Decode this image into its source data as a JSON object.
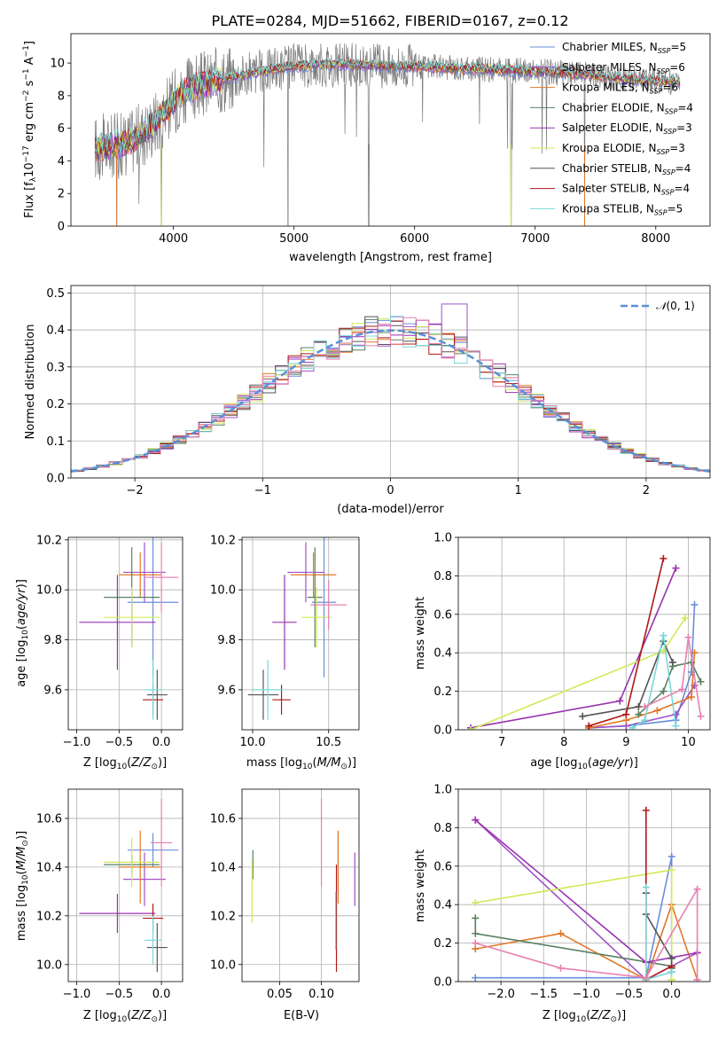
{
  "title": "PLATE=0284, MJD=51662, FIBERID=0167, z=0.12",
  "colors": {
    "Chabrier MILES": "#6a8ed8",
    "Salpeter MILES": "#a050c8",
    "Kroupa MILES": "#e07828",
    "Chabrier ELODIE": "#5a8060",
    "Salpeter ELODIE": "#9a32b0",
    "Kroupa ELODIE": "#d0ea58",
    "Chabrier STELIB": "#555555",
    "Salpeter STELIB": "#b01818",
    "Kroupa STELIB": "#78d8d8",
    "pink": "#e880b0",
    "spectrum": "#7a7a7a",
    "normal": "#5b8fd6"
  },
  "chart_data": [
    {
      "type": "line",
      "name": "spectrum",
      "xlabel": "wavelength [Angstrom, rest frame]",
      "ylabel": "Flux [f_λ10^-17 erg cm^-2 s^-1 A^-1]",
      "xlim": [
        3150,
        8450
      ],
      "ylim": [
        0,
        11.8
      ],
      "xticks": [
        4000,
        5000,
        6000,
        7000,
        8000
      ],
      "yticks": [
        0,
        2,
        4,
        6,
        8,
        10
      ],
      "grid": false,
      "legend_position": "right",
      "legend": [
        {
          "label": "Chabrier MILES, N_SSP=5",
          "main": "Chabrier MILES, N",
          "sub": "SSP",
          "tail": "=5",
          "color_key": "Chabrier MILES"
        },
        {
          "label": "Salpeter MILES, N_SSP=6",
          "main": "Salpeter MILES, N",
          "sub": "SSP",
          "tail": "=6",
          "color_key": "Salpeter MILES"
        },
        {
          "label": "Kroupa MILES, N_SSP=6",
          "main": "Kroupa MILES, N",
          "sub": "SSP",
          "tail": "=6",
          "color_key": "Kroupa MILES"
        },
        {
          "label": "Chabrier ELODIE, N_SSP=4",
          "main": "Chabrier ELODIE, N",
          "sub": "SSP",
          "tail": "=4",
          "color_key": "Chabrier ELODIE"
        },
        {
          "label": "Salpeter ELODIE, N_SSP=3",
          "main": "Salpeter ELODIE, N",
          "sub": "SSP",
          "tail": "=3",
          "color_key": "Salpeter ELODIE"
        },
        {
          "label": "Kroupa ELODIE, N_SSP=3",
          "main": "Kroupa ELODIE, N",
          "sub": "SSP",
          "tail": "=3",
          "color_key": "Kroupa ELODIE"
        },
        {
          "label": "Chabrier STELIB, N_SSP=4",
          "main": "Chabrier STELIB, N",
          "sub": "SSP",
          "tail": "=4",
          "color_key": "Chabrier STELIB"
        },
        {
          "label": "Salpeter STELIB, N_SSP=4",
          "main": "Salpeter STELIB, N",
          "sub": "SSP",
          "tail": "=4",
          "color_key": "Salpeter STELIB"
        },
        {
          "label": "Kroupa STELIB, N_SSP=5",
          "main": "Kroupa STELIB, N",
          "sub": "SSP",
          "tail": "=5",
          "color_key": "Kroupa STELIB"
        }
      ],
      "continuum": {
        "x": [
          3350,
          3500,
          3650,
          3800,
          3950,
          4050,
          4200,
          4400,
          4600,
          4800,
          5000,
          5200,
          5500,
          5800,
          6000,
          6300,
          6600,
          7000,
          7400,
          7800,
          8200
        ],
        "y": [
          4.8,
          4.9,
          5.2,
          6.0,
          7.2,
          8.0,
          8.6,
          9.0,
          9.3,
          9.6,
          9.8,
          9.9,
          9.9,
          9.8,
          9.8,
          9.7,
          9.6,
          9.5,
          9.3,
          9.0,
          8.8
        ]
      },
      "dips": [
        {
          "x": 3530,
          "y": 0.0
        },
        {
          "x": 3900,
          "y": 0.0
        },
        {
          "x": 4950,
          "y": 0.0
        },
        {
          "x": 5620,
          "y": 0.0
        },
        {
          "x": 6800,
          "y": 0.0
        },
        {
          "x": 7410,
          "y": 0.0
        }
      ]
    },
    {
      "type": "bar",
      "name": "residual histogram",
      "xlabel": "(data-model)/error",
      "ylabel": "Normed distribution",
      "xlim": [
        -2.5,
        2.5
      ],
      "ylim": [
        0,
        0.52
      ],
      "xticks": [
        -2,
        -1,
        0,
        1,
        2
      ],
      "yticks": [
        0.0,
        0.1,
        0.2,
        0.3,
        0.4,
        0.5
      ],
      "grid": true,
      "legend": [
        {
          "label": "N(0,1)",
          "style": "dashed",
          "color_key": "normal"
        }
      ],
      "bin_width": 0.1,
      "bin_start": -2.5,
      "normal": {
        "mean": 0,
        "sigma": 1
      }
    },
    {
      "type": "scatter",
      "name": "age vs Z",
      "xlabel": "Z [log10(Z/Z⊙)]",
      "ylabel": "age [log10(age/yr)]",
      "xlim": [
        -1.1,
        0.25
      ],
      "ylim": [
        9.44,
        10.21
      ],
      "xticks": [
        -1.0,
        -0.5,
        0.0
      ],
      "yticks": [
        9.6,
        9.8,
        10.0,
        10.2
      ],
      "grid": true,
      "points": [
        {
          "key": "Chabrier MILES",
          "x": -0.1,
          "xerr": 0.3,
          "y": 9.95,
          "yerr": 0.3
        },
        {
          "key": "Salpeter MILES",
          "x": -0.2,
          "xerr": 0.25,
          "y": 10.07,
          "yerr": 0.12
        },
        {
          "key": "Kroupa MILES",
          "x": -0.25,
          "xerr": 0.25,
          "y": 10.06,
          "yerr": 0.09
        },
        {
          "key": "Chabrier ELODIE",
          "x": -0.35,
          "xerr": 0.33,
          "y": 9.97,
          "yerr": 0.2
        },
        {
          "key": "Salpeter ELODIE",
          "x": -0.52,
          "xerr": 0.45,
          "y": 9.87,
          "yerr": 0.19
        },
        {
          "key": "Kroupa ELODIE",
          "x": -0.35,
          "xerr": 0.33,
          "y": 9.89,
          "yerr": 0.12
        },
        {
          "key": "Chabrier STELIB",
          "x": -0.05,
          "xerr": 0.12,
          "y": 9.58,
          "yerr": 0.1
        },
        {
          "key": "Salpeter STELIB",
          "x": -0.1,
          "xerr": 0.12,
          "y": 9.56,
          "yerr": 0.06
        },
        {
          "key": "Kroupa STELIB",
          "x": -0.1,
          "xerr": 0.1,
          "y": 9.6,
          "yerr": 0.12
        },
        {
          "key": "pink",
          "x": 0.0,
          "xerr": 0.2,
          "y": 10.05,
          "yerr": 0.14
        }
      ]
    },
    {
      "type": "scatter",
      "name": "age vs mass",
      "xlabel": "mass [log10(M/M⊙)]",
      "ylabel": "",
      "xlim": [
        9.93,
        10.7
      ],
      "ylim": [
        9.44,
        10.21
      ],
      "xticks": [
        10.0,
        10.5
      ],
      "yticks": [
        9.6,
        9.8,
        10.0,
        10.2
      ],
      "grid": true,
      "points": [
        {
          "key": "Chabrier MILES",
          "x": 10.47,
          "xerr": 0.08,
          "y": 9.95,
          "yerr": 0.3
        },
        {
          "key": "Salpeter MILES",
          "x": 10.35,
          "xerr": 0.12,
          "y": 10.07,
          "yerr": 0.12
        },
        {
          "key": "Kroupa MILES",
          "x": 10.4,
          "xerr": 0.15,
          "y": 10.06,
          "yerr": 0.09
        },
        {
          "key": "Chabrier ELODIE",
          "x": 10.41,
          "xerr": 0.05,
          "y": 9.97,
          "yerr": 0.2
        },
        {
          "key": "Salpeter ELODIE",
          "x": 10.21,
          "xerr": 0.08,
          "y": 9.87,
          "yerr": 0.19
        },
        {
          "key": "Kroupa ELODIE",
          "x": 10.42,
          "xerr": 0.1,
          "y": 9.89,
          "yerr": 0.12
        },
        {
          "key": "Chabrier STELIB",
          "x": 10.07,
          "xerr": 0.1,
          "y": 9.58,
          "yerr": 0.1
        },
        {
          "key": "Salpeter STELIB",
          "x": 10.19,
          "xerr": 0.06,
          "y": 9.56,
          "yerr": 0.06
        },
        {
          "key": "Kroupa STELIB",
          "x": 10.1,
          "xerr": 0.1,
          "y": 9.6,
          "yerr": 0.12
        },
        {
          "key": "pink",
          "x": 10.5,
          "xerr": 0.12,
          "y": 9.94,
          "yerr": 0.1
        }
      ]
    },
    {
      "type": "line",
      "name": "mass weight vs age",
      "xlabel": "age [log10(age/yr)]",
      "ylabel": "mass weight",
      "xlim": [
        6.3,
        10.35
      ],
      "ylim": [
        0,
        1.0
      ],
      "xticks": [
        7,
        8,
        9,
        10
      ],
      "yticks": [
        0.0,
        0.2,
        0.4,
        0.6,
        0.8,
        1.0
      ],
      "grid": true,
      "series": [
        {
          "key": "Chabrier MILES",
          "x": [
            8.4,
            9.0,
            9.8,
            10.05,
            10.1
          ],
          "y": [
            0.01,
            0.02,
            0.05,
            0.3,
            0.65
          ]
        },
        {
          "key": "Salpeter MILES",
          "x": [
            8.4,
            9.0,
            9.8,
            10.1
          ],
          "y": [
            0.01,
            0.02,
            0.08,
            0.23
          ]
        },
        {
          "key": "Kroupa MILES",
          "x": [
            8.4,
            9.0,
            9.5,
            10.05,
            10.1
          ],
          "y": [
            0.01,
            0.05,
            0.1,
            0.17,
            0.4
          ]
        },
        {
          "key": "Chabrier ELODIE",
          "x": [
            9.2,
            9.6,
            9.75,
            10.05,
            10.2
          ],
          "y": [
            0.08,
            0.2,
            0.33,
            0.35,
            0.25
          ]
        },
        {
          "key": "Salpeter ELODIE",
          "x": [
            6.5,
            8.9,
            9.8
          ],
          "y": [
            0.01,
            0.15,
            0.84
          ]
        },
        {
          "key": "Kroupa ELODIE",
          "x": [
            6.5,
            9.6,
            9.95
          ],
          "y": [
            0.0,
            0.41,
            0.58
          ]
        },
        {
          "key": "Chabrier STELIB",
          "x": [
            8.3,
            9.2,
            9.6,
            9.75
          ],
          "y": [
            0.07,
            0.12,
            0.46,
            0.35
          ]
        },
        {
          "key": "Salpeter STELIB",
          "x": [
            8.4,
            9.0,
            9.6
          ],
          "y": [
            0.02,
            0.08,
            0.89
          ]
        },
        {
          "key": "Kroupa STELIB",
          "x": [
            9.1,
            9.3,
            9.6,
            9.8
          ],
          "y": [
            0.01,
            0.05,
            0.49,
            0.02
          ]
        },
        {
          "key": "pink",
          "x": [
            9.3,
            9.9,
            10.0,
            10.2
          ],
          "y": [
            0.12,
            0.21,
            0.48,
            0.07
          ]
        }
      ]
    },
    {
      "type": "scatter",
      "name": "mass vs Z",
      "xlabel": "Z [log10(Z/Z⊙)]",
      "ylabel": "mass [log10(M/M⊙)]",
      "xlim": [
        -1.1,
        0.25
      ],
      "ylim": [
        9.93,
        10.72
      ],
      "xticks": [
        -1.0,
        -0.5,
        0.0
      ],
      "yticks": [
        10.0,
        10.2,
        10.4,
        10.6
      ],
      "grid": true,
      "points": [
        {
          "key": "Chabrier MILES",
          "x": -0.1,
          "xerr": 0.3,
          "y": 10.47,
          "yerr": 0.07
        },
        {
          "key": "Salpeter MILES",
          "x": -0.2,
          "xerr": 0.25,
          "y": 10.35,
          "yerr": 0.11
        },
        {
          "key": "Kroupa MILES",
          "x": -0.25,
          "xerr": 0.25,
          "y": 10.4,
          "yerr": 0.15
        },
        {
          "key": "Chabrier ELODIE",
          "x": -0.35,
          "xerr": 0.33,
          "y": 10.41,
          "yerr": 0.04
        },
        {
          "key": "Salpeter ELODIE",
          "x": -0.52,
          "xerr": 0.45,
          "y": 10.21,
          "yerr": 0.08
        },
        {
          "key": "Kroupa ELODIE",
          "x": -0.35,
          "xerr": 0.33,
          "y": 10.42,
          "yerr": 0.1
        },
        {
          "key": "Chabrier STELIB",
          "x": -0.05,
          "xerr": 0.12,
          "y": 10.07,
          "yerr": 0.1
        },
        {
          "key": "Salpeter STELIB",
          "x": -0.1,
          "xerr": 0.12,
          "y": 10.19,
          "yerr": 0.06
        },
        {
          "key": "Kroupa STELIB",
          "x": -0.1,
          "xerr": 0.1,
          "y": 10.1,
          "yerr": 0.1
        },
        {
          "key": "pink",
          "x": 0.0,
          "xerr": 0.13,
          "y": 10.5,
          "yerr": 0.18
        }
      ]
    },
    {
      "type": "scatter",
      "name": "mass vs E(B-V)",
      "xlabel": "E(B-V)",
      "ylabel": "",
      "xlim": [
        0.005,
        0.145
      ],
      "ylim": [
        9.93,
        10.72
      ],
      "xticks": [
        0.05,
        0.1
      ],
      "yticks": [
        10.0,
        10.2,
        10.4,
        10.6
      ],
      "grid": true,
      "points": [
        {
          "key": "Chabrier MILES",
          "x": 0.12,
          "y": 10.47,
          "yerr": 0.07
        },
        {
          "key": "Salpeter MILES",
          "x": 0.14,
          "y": 10.35,
          "yerr": 0.11
        },
        {
          "key": "Kroupa MILES",
          "x": 0.12,
          "y": 10.4,
          "yerr": 0.15
        },
        {
          "key": "Chabrier ELODIE",
          "x": 0.018,
          "y": 10.41,
          "yerr": 0.06
        },
        {
          "key": "Kroupa ELODIE",
          "x": 0.017,
          "y": 10.3,
          "yerr": 0.13
        },
        {
          "key": "Salpeter STELIB",
          "x": 0.118,
          "y": 10.19,
          "yerr": 0.22
        },
        {
          "key": "Kroupa STELIB",
          "x": 0.117,
          "y": 10.18,
          "yerr": 0.12
        },
        {
          "key": "pink",
          "x": 0.1,
          "y": 10.5,
          "yerr": 0.18
        }
      ]
    },
    {
      "type": "line",
      "name": "mass weight vs Z",
      "xlabel": "Z [log10(Z/Z⊙)]",
      "ylabel": "mass weight",
      "xlim": [
        -2.5,
        0.45
      ],
      "ylim": [
        0,
        1.0
      ],
      "xticks": [
        -2.0,
        -1.5,
        -1.0,
        -0.5,
        0.0
      ],
      "yticks": [
        0.0,
        0.2,
        0.4,
        0.6,
        0.8,
        1.0
      ],
      "grid": true,
      "series": [
        {
          "key": "Chabrier MILES",
          "x": [
            -2.3,
            -0.3,
            0.0,
            0.0
          ],
          "y": [
            0.02,
            0.02,
            0.65,
            0.05
          ]
        },
        {
          "key": "Salpeter MILES",
          "x": [
            -2.3,
            -0.3,
            0.3
          ],
          "y": [
            0.84,
            0.01,
            0.15
          ]
        },
        {
          "key": "Kroupa MILES",
          "x": [
            -2.3,
            -1.3,
            -0.3,
            0.0,
            0.3
          ],
          "y": [
            0.17,
            0.25,
            0.01,
            0.4,
            0.01
          ]
        },
        {
          "key": "Chabrier ELODIE",
          "x": [
            -2.3,
            -2.3,
            0.0,
            0.0
          ],
          "y": [
            0.33,
            0.25,
            0.08,
            0.01
          ]
        },
        {
          "key": "Salpeter ELODIE",
          "x": [
            -2.3,
            -0.3,
            0.3
          ],
          "y": [
            0.84,
            0.1,
            0.15
          ]
        },
        {
          "key": "Kroupa ELODIE",
          "x": [
            -2.3,
            0.0,
            0.0
          ],
          "y": [
            0.41,
            0.58,
            0.01
          ]
        },
        {
          "key": "Chabrier STELIB",
          "x": [
            -0.3,
            -0.3,
            0.0,
            0.0
          ],
          "y": [
            0.46,
            0.35,
            0.12,
            0.07
          ]
        },
        {
          "key": "Salpeter STELIB",
          "x": [
            -0.3,
            -0.3,
            0.0
          ],
          "y": [
            0.89,
            0.01,
            0.08
          ]
        },
        {
          "key": "Kroupa STELIB",
          "x": [
            -0.3,
            -0.3,
            0.0
          ],
          "y": [
            0.49,
            0.01,
            0.05
          ]
        },
        {
          "key": "pink",
          "x": [
            -2.3,
            -1.3,
            -0.3,
            0.3,
            0.3
          ],
          "y": [
            0.2,
            0.07,
            0.02,
            0.48,
            0.01
          ]
        }
      ]
    }
  ]
}
